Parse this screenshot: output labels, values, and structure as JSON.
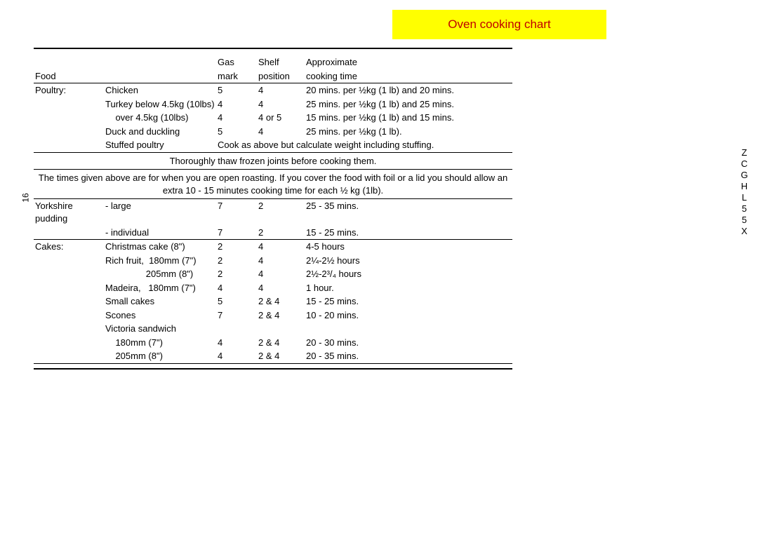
{
  "title": "Oven cooking chart",
  "side_page_number": "16",
  "side_model": "ZCGHL55X",
  "headers": {
    "food": "Food",
    "gas1": "Gas",
    "gas2": "mark",
    "shelf1": "Shelf",
    "shelf2": "position",
    "time1": "Approximate",
    "time2": "cooking time"
  },
  "poultry": {
    "label": "Poultry:",
    "rows": [
      {
        "item": "Chicken",
        "gas": "5",
        "shelf": "4",
        "time": "20 mins. per ½kg (1 lb) and 20 mins."
      },
      {
        "item": "Turkey below 4.5kg (10lbs)",
        "gas": "4",
        "shelf": "4",
        "time": "25 mins. per ½kg (1 lb) and 25 mins."
      },
      {
        "item": "    over 4.5kg (10lbs)",
        "gas": "4",
        "shelf": "4 or  5",
        "time": "15 mins. per ½kg (1 lb) and 15 mins."
      },
      {
        "item": "Duck and duckling",
        "gas": "5",
        "shelf": "4",
        "time": "25 mins. per ½kg (1 lb)."
      }
    ],
    "stuffed_label": "Stuffed poultry",
    "stuffed_note": "Cook as above but calculate weight including stuffing."
  },
  "thaw_note": "Thoroughly thaw frozen joints before cooking them.",
  "foil_note": "The times given above are for when you are open roasting.  If you cover the food with foil or a lid you should allow an extra 10 - 15 minutes cooking time for each ½ kg (1lb).",
  "yorkshire": {
    "label": "Yorkshire pudding",
    "rows": [
      {
        "item": "- large",
        "gas": "7",
        "shelf": "2",
        "time": "25 - 35 mins."
      },
      {
        "item": "- individual",
        "gas": "7",
        "shelf": "2",
        "time": "15 - 25 mins."
      }
    ]
  },
  "cakes": {
    "label": "Cakes:",
    "rows": [
      {
        "item": "Christmas cake (8\")",
        "gas": "2",
        "shelf": "4",
        "time": "4-5 hours"
      },
      {
        "item": "Rich fruit,  180mm (7\")",
        "gas": "2",
        "shelf": "4",
        "time": "2¼-2½ hours"
      },
      {
        "item": "                205mm (8\")",
        "gas": "2",
        "shelf": "4",
        "time": "2½-2³/₄ hours"
      },
      {
        "item": "Madeira,   180mm (7\")",
        "gas": "4",
        "shelf": "4",
        "time": "1 hour."
      },
      {
        "item": "Small cakes",
        "gas": "5",
        "shelf": "2 & 4",
        "time": "15 - 25 mins."
      },
      {
        "item": "Scones",
        "gas": "7",
        "shelf": "2 & 4",
        "time": "10 - 20 mins."
      }
    ],
    "victoria_label": "Victoria sandwich",
    "victoria_rows": [
      {
        "item": "    180mm (7\")",
        "gas": "4",
        "shelf": "2 & 4",
        "time": "20 - 30 mins."
      },
      {
        "item": "    205mm (8\")",
        "gas": "4",
        "shelf": "2 & 4",
        "time": "20 - 35 mins."
      }
    ]
  }
}
